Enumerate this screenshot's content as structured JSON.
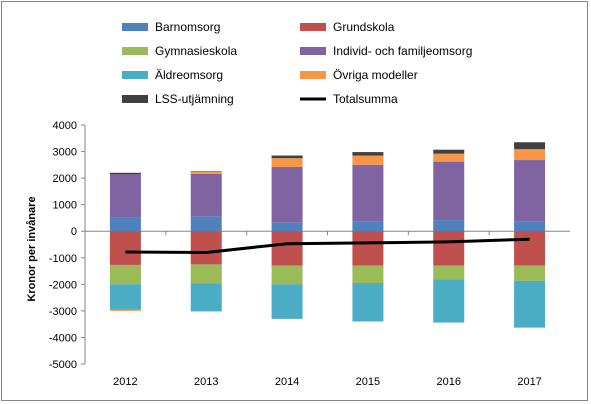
{
  "chart_data": {
    "type": "bar",
    "stacked": true,
    "title": "",
    "xlabel": "",
    "ylabel": "Kronor per invånare",
    "ylim": [
      -5000,
      4000
    ],
    "yticks": [
      4000,
      3000,
      2000,
      1000,
      0,
      -1000,
      -2000,
      -3000,
      -4000,
      -5000
    ],
    "ytick_labels": [
      "4000",
      "3000",
      "2000",
      "1000",
      "0",
      "-1000",
      "-2000",
      "-3000",
      "-4000",
      "-5000"
    ],
    "grid": "horizontal",
    "legend_position": "top",
    "categories": [
      "2012",
      "2013",
      "2014",
      "2015",
      "2016",
      "2017"
    ],
    "series": [
      {
        "name": "Barnomsorg",
        "color": "#4F81BD",
        "values": [
          520,
          560,
          320,
          380,
          420,
          380
        ]
      },
      {
        "name": "Grundskola",
        "color": "#C0504D",
        "values": [
          -1270,
          -1250,
          -1300,
          -1300,
          -1300,
          -1300
        ]
      },
      {
        "name": "Gymnasieskola",
        "color": "#9BBB59",
        "values": [
          -730,
          -720,
          -700,
          -650,
          -520,
          -570
        ]
      },
      {
        "name": "Individ- och familjeomsorg",
        "color": "#8064A2",
        "values": [
          1620,
          1600,
          2100,
          2120,
          2200,
          2300
        ]
      },
      {
        "name": "Äldreomsorg",
        "color": "#4BACC6",
        "values": [
          -950,
          -1050,
          -1300,
          -1450,
          -1620,
          -1760
        ]
      },
      {
        "name": "Övriga modeller",
        "color": "#F79646",
        "values": [
          -50,
          80,
          330,
          350,
          300,
          410
        ]
      },
      {
        "name": "LSS-utjämning",
        "color": "#404040",
        "values": [
          60,
          20,
          100,
          130,
          150,
          260
        ]
      }
    ],
    "line": {
      "name": "Totalsumma",
      "color": "#000000",
      "values": [
        -780,
        -800,
        -470,
        -440,
        -400,
        -300
      ]
    }
  }
}
